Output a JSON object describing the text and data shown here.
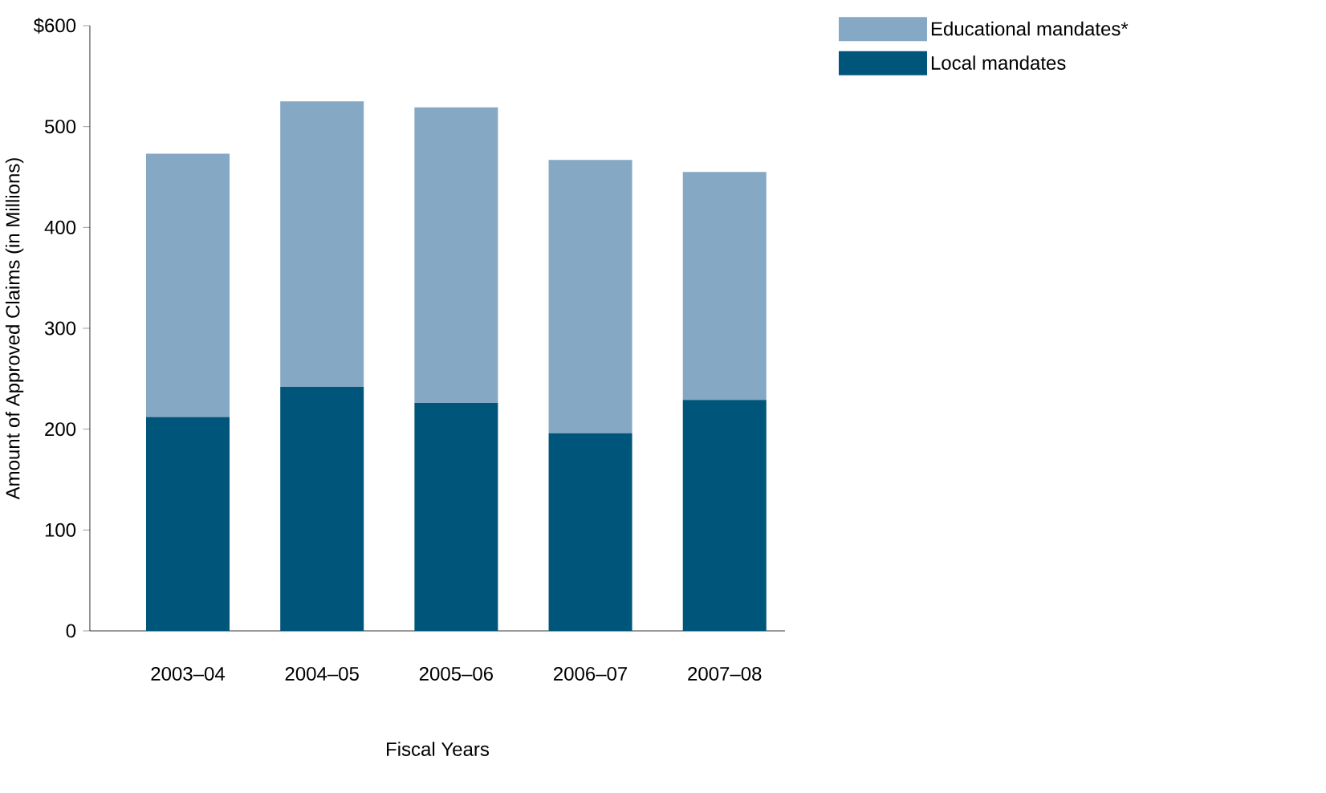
{
  "chart_data": {
    "type": "bar",
    "stacked": true,
    "xlabel": "Fiscal Years",
    "ylabel": "Amount of Approved Claims  (in Millions)",
    "categories": [
      "2003–04",
      "2004–05",
      "2005–06",
      "2006–07",
      "2007–08"
    ],
    "series": [
      {
        "name": "Local mandates",
        "color": "#00557a",
        "values": [
          212,
          242,
          226,
          196,
          229
        ]
      },
      {
        "name": "Educational mandates*",
        "color": "#85a8c4",
        "values": [
          261,
          283,
          293,
          271,
          226
        ]
      }
    ],
    "ylim": [
      0,
      600
    ],
    "yticks": [
      0,
      100,
      200,
      300,
      400,
      500,
      {
        "value": 600,
        "label": "$600"
      }
    ],
    "grid": false,
    "legend": "top right"
  }
}
